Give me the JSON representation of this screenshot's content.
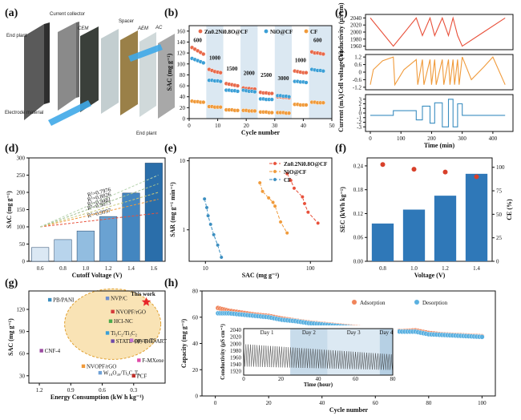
{
  "figure": {
    "panel_labels": [
      "(a)",
      "(b)",
      "(c)",
      "(d)",
      "(e)",
      "(f)",
      "(g)",
      "(h)"
    ]
  },
  "panel_a": {
    "labels": [
      "End plant",
      "Current collector",
      "CEM",
      "Spacer",
      "AEM",
      "AC",
      "Electrode material",
      "End plant"
    ]
  },
  "chart_data": [
    {
      "id": "b",
      "type": "scatter",
      "xlabel": "Cycle number",
      "ylabel": "SAC (mg g⁻¹)",
      "xlim": [
        0,
        50
      ],
      "ylim": [
        0,
        170
      ],
      "xticks": [
        0,
        10,
        20,
        30,
        40,
        50
      ],
      "yticks": [
        0,
        20,
        40,
        60,
        80,
        100,
        120,
        140,
        160
      ],
      "legend": [
        "Zn0.2Ni0.8O@CF",
        "NiO@CF",
        "CF"
      ],
      "legend_position": "top",
      "segment_labels": [
        "600",
        "1000",
        "1500",
        "2000",
        "2500",
        "3000",
        "1000",
        "600"
      ],
      "series": [
        {
          "name": "Zn0.2Ni0.8O@CF",
          "color": "#e8694a",
          "x": [
            1,
            2,
            3,
            4,
            5,
            7,
            8,
            9,
            10,
            11,
            13,
            14,
            15,
            16,
            17,
            19,
            20,
            21,
            22,
            23,
            25,
            26,
            27,
            28,
            29,
            31,
            32,
            33,
            34,
            35,
            37,
            38,
            39,
            40,
            41,
            43,
            44,
            45,
            46,
            47
          ],
          "y": [
            130,
            127,
            124,
            121,
            118,
            90,
            88,
            86,
            85,
            84,
            64,
            63,
            62,
            61,
            60,
            56,
            55,
            55,
            54,
            54,
            48,
            47,
            47,
            46,
            46,
            40,
            40,
            39,
            39,
            38,
            87,
            86,
            85,
            84,
            84,
            122,
            120,
            120,
            119,
            118
          ]
        },
        {
          "name": "NiO@CF",
          "color": "#3b9fd6",
          "x": [
            1,
            2,
            3,
            4,
            5,
            7,
            8,
            9,
            10,
            11,
            13,
            14,
            15,
            16,
            17,
            19,
            20,
            21,
            22,
            23,
            25,
            26,
            27,
            28,
            29,
            31,
            32,
            33,
            34,
            35,
            37,
            38,
            39,
            40,
            41,
            43,
            44,
            45,
            46,
            47
          ],
          "y": [
            110,
            108,
            106,
            104,
            102,
            70,
            70,
            69,
            69,
            68,
            52,
            52,
            51,
            51,
            50,
            52,
            51,
            50,
            50,
            49,
            36,
            36,
            35,
            35,
            35,
            42,
            42,
            41,
            41,
            40,
            68,
            68,
            67,
            67,
            66,
            90,
            89,
            88,
            88,
            87
          ]
        },
        {
          "name": "CF",
          "color": "#f09a3a",
          "x": [
            1,
            2,
            3,
            4,
            5,
            7,
            8,
            9,
            10,
            11,
            13,
            14,
            15,
            16,
            17,
            19,
            20,
            21,
            22,
            23,
            25,
            26,
            27,
            28,
            29,
            31,
            32,
            33,
            34,
            35,
            37,
            38,
            39,
            40,
            41,
            43,
            44,
            45,
            46,
            47
          ],
          "y": [
            32,
            31,
            31,
            30,
            30,
            22,
            22,
            21,
            21,
            21,
            16,
            16,
            16,
            15,
            15,
            15,
            15,
            14,
            14,
            14,
            12,
            12,
            12,
            11,
            11,
            11,
            11,
            11,
            10,
            10,
            26,
            26,
            25,
            25,
            25,
            30,
            30,
            29,
            29,
            29
          ]
        }
      ]
    },
    {
      "id": "c",
      "type": "line",
      "xlabel": "Time (min)",
      "xlim": [
        0,
        450
      ],
      "xticks": [
        0,
        100,
        200,
        300,
        400
      ],
      "subplots": [
        {
          "ylabel": "Conductivity (μS/cm)",
          "ylim": [
            1950,
            2050
          ],
          "yticks": [
            1960,
            1980,
            2000,
            2020,
            2040
          ],
          "color": "#e8503a",
          "x": [
            0,
            75,
            150,
            170,
            195,
            210,
            235,
            255,
            270,
            285,
            300,
            370,
            440
          ],
          "y": [
            2040,
            1960,
            2040,
            1990,
            2040,
            1990,
            2040,
            1990,
            2040,
            1990,
            1960,
            2000,
            2040
          ]
        },
        {
          "ylabel": "Cell voltage (V)",
          "ylim": [
            -1.4,
            1.4
          ],
          "yticks": [
            -1.2,
            -0.6,
            0.0,
            0.6,
            1.2
          ],
          "color": "#f09a3a",
          "x": [
            0,
            10,
            40,
            75,
            80,
            110,
            150,
            155,
            170,
            175,
            195,
            200,
            210,
            215,
            235,
            240,
            255,
            260,
            270,
            275,
            285,
            290,
            300,
            330,
            370,
            400,
            440
          ],
          "y": [
            -1.0,
            0.2,
            0.9,
            1.2,
            -1.0,
            0.2,
            1.0,
            -1.0,
            1.0,
            -1.0,
            1.0,
            -1.0,
            1.0,
            -1.0,
            1.0,
            -1.0,
            1.0,
            -1.0,
            1.0,
            -1.0,
            1.0,
            -1.0,
            1.2,
            -0.6,
            0.4,
            1.2,
            -1.0
          ]
        },
        {
          "ylabel": "Current (mA)",
          "ylim": [
            -4,
            4
          ],
          "yticks": [
            -3,
            -2,
            -1,
            0,
            1,
            2,
            3
          ],
          "color": "#3b8ec0",
          "x": [
            0,
            75,
            75,
            150,
            150,
            170,
            170,
            195,
            195,
            210,
            210,
            235,
            235,
            255,
            255,
            270,
            270,
            285,
            285,
            300,
            300,
            440
          ],
          "y": [
            -0.5,
            -0.5,
            0.5,
            0.5,
            -1.5,
            -1.5,
            1.5,
            1.5,
            -2.2,
            -2.2,
            2.2,
            2.2,
            -3,
            -3,
            3,
            3,
            -3,
            -3,
            2,
            2,
            -0.5,
            -0.5
          ]
        }
      ]
    },
    {
      "id": "d",
      "type": "bar",
      "xlabel": "Cutoff Voltage (V)",
      "ylabel": "SAC (mg g⁻¹)",
      "categories": [
        "0.6",
        "0.8",
        "1.0",
        "1.2",
        "1.4",
        "1.6"
      ],
      "values": [
        40,
        63,
        88,
        130,
        198,
        285
      ],
      "ylim": [
        0,
        300
      ],
      "yticks": [
        0,
        50,
        100,
        150,
        200,
        250,
        300
      ],
      "trend_labels": [
        "R²=0.9997",
        "R²=0.9873",
        "R²=0.9481",
        "R²=0.8826",
        "R²=0.7976"
      ],
      "trend_end_values": [
        140,
        180,
        200,
        225,
        250
      ],
      "trend_colors": [
        "#e8503a",
        "#f09a3a",
        "#c9c97a",
        "#9fbf8f",
        "#b8d4b0"
      ]
    },
    {
      "id": "e",
      "type": "scatter",
      "xlabel": "SAC (mg g⁻¹)",
      "ylabel": "SAR (mg g⁻¹ min⁻¹)",
      "xscale": "log",
      "yscale": "log",
      "xlim": [
        7,
        160
      ],
      "ylim": [
        0.35,
        11
      ],
      "xticks": [
        10,
        100
      ],
      "yticks": [
        1,
        10
      ],
      "legend": [
        "Zn0.2Ni0.8O@CF",
        "NiO@CF",
        "CF"
      ],
      "series": [
        {
          "name": "Zn0.2Ni0.8O@CF",
          "color": "#e8503a",
          "x": [
            60,
            65,
            70,
            84,
            88,
            95,
            118
          ],
          "y": [
            6.5,
            5.2,
            4.0,
            3.0,
            2.4,
            1.8,
            1.25
          ]
        },
        {
          "name": "NiO@CF",
          "color": "#f09a3a",
          "x": [
            33,
            35,
            40,
            44,
            46,
            52,
            60
          ],
          "y": [
            4.8,
            3.6,
            2.9,
            2.5,
            2.2,
            1.3,
            0.9
          ]
        },
        {
          "name": "CF",
          "color": "#3b8ec0",
          "x": [
            9.8,
            10.3,
            10.6,
            11.2,
            12.0,
            13.1,
            14.2
          ],
          "y": [
            2.8,
            2.1,
            1.6,
            1.2,
            0.85,
            0.6,
            0.4
          ]
        }
      ]
    },
    {
      "id": "f",
      "type": "bar",
      "xlabel": "Voltage (V)",
      "ylabel": "SEC (kWh kg⁻¹)",
      "y2label": "CE (%)",
      "categories": [
        "0.8",
        "1.0",
        "1.2",
        "1.4"
      ],
      "values": [
        0.095,
        0.13,
        0.165,
        0.22
      ],
      "ce_values": [
        103,
        98,
        95,
        90
      ],
      "ylim": [
        0,
        0.26
      ],
      "yticks": [
        0.0,
        0.06,
        0.12,
        0.18,
        0.24
      ],
      "y2lim": [
        0,
        110
      ],
      "y2ticks": [
        0,
        25,
        50,
        75,
        100
      ]
    },
    {
      "id": "g",
      "type": "scatter",
      "xlabel": "Energy Consumption (kW h kg⁻¹)",
      "ylabel": "SAC (mg g⁻¹)",
      "xlim": [
        1.3,
        0.0
      ],
      "ylim": [
        20,
        145
      ],
      "xticks": [
        1.2,
        0.9,
        0.6,
        0.3
      ],
      "yticks": [
        30,
        60,
        90,
        120
      ],
      "highlight_label": "This work",
      "points": [
        {
          "label": "This work",
          "x": 0.18,
          "y": 130,
          "color": "#e8262a"
        },
        {
          "label": "PB/PANI",
          "x": 1.1,
          "y": 133,
          "color": "#3b8ec0"
        },
        {
          "label": "NVP/C",
          "x": 0.55,
          "y": 135,
          "color": "#6e8fcf"
        },
        {
          "label": "NVOPF/rGO",
          "x": 0.5,
          "y": 117,
          "color": "#d43a3a"
        },
        {
          "label": "HCl-NC",
          "x": 0.52,
          "y": 104,
          "color": "#4aaa4a"
        },
        {
          "label": "Ti₃C₂/Ti₃C₂",
          "x": 0.55,
          "y": 88,
          "color": "#3b9fd6"
        },
        {
          "label": "STATE-OF-THE-ART",
          "x": 0.5,
          "y": 77,
          "color": "#6e4aa8"
        },
        {
          "label": "ppy-p-TS",
          "x": 0.32,
          "y": 78,
          "color": "#c070d0"
        },
        {
          "label": "CNF-4",
          "x": 1.18,
          "y": 64,
          "color": "#9a4aa0"
        },
        {
          "label": "F-MXene",
          "x": 0.25,
          "y": 51,
          "color": "#e04aa8"
        },
        {
          "label": "NVOPF/rGO",
          "x": 0.78,
          "y": 43,
          "color": "#f09a3a"
        },
        {
          "label": "W₁₈O₄₉/Ti₃C₂Tₓ",
          "x": 0.62,
          "y": 34,
          "color": "#6ea0d6"
        },
        {
          "label": "PCF",
          "x": 0.3,
          "y": 30,
          "color": "#c0302a"
        }
      ]
    },
    {
      "id": "h",
      "type": "scatter",
      "xlabel": "Cycle number",
      "ylabel": "Capacity (mg g⁻¹)",
      "xlim": [
        -5,
        105
      ],
      "ylim": [
        0,
        80
      ],
      "xticks": [
        0,
        20,
        40,
        60,
        80,
        100
      ],
      "yticks": [
        0,
        20,
        40,
        60,
        80
      ],
      "legend": [
        "Adsorption",
        "Desorption"
      ],
      "series": [
        {
          "name": "Adsorption",
          "color": "#f0845a",
          "x": [
            1,
            5,
            10,
            15,
            20,
            25,
            30,
            35,
            40,
            45,
            50,
            55,
            60,
            65,
            70,
            75,
            80,
            85,
            90,
            95,
            100
          ],
          "y": [
            67,
            65,
            63.5,
            62,
            61,
            59,
            57.5,
            56,
            55,
            54,
            53,
            52,
            51,
            50,
            49.5,
            50,
            48,
            47,
            46.5,
            46,
            45.5
          ]
        },
        {
          "name": "Desorption",
          "color": "#5ab0e0",
          "x": [
            1,
            5,
            10,
            15,
            20,
            25,
            30,
            35,
            40,
            45,
            50,
            55,
            60,
            65,
            70,
            75,
            80,
            85,
            90,
            95,
            100
          ],
          "y": [
            63,
            63,
            62,
            61,
            60,
            58,
            57,
            55.5,
            54.5,
            53.5,
            52.5,
            51.5,
            50.5,
            49.5,
            49,
            49,
            47,
            46.5,
            46,
            45.5,
            45
          ]
        }
      ],
      "inset": {
        "type": "line",
        "xlabel": "Time (hour)",
        "ylabel": "Conductivity (μS cm⁻¹)",
        "xlim": [
          0,
          80
        ],
        "ylim": [
          1910,
          2045
        ],
        "xticks": [
          0,
          20,
          40,
          60,
          80
        ],
        "yticks": [
          1920,
          1940,
          1960,
          1980,
          2000,
          2020,
          2040
        ],
        "day_labels": [
          "Day 1",
          "Day 2",
          "Day 3",
          "Day 4"
        ],
        "day_bounds": [
          0,
          25,
          45,
          73,
          80
        ],
        "oscillation_period_hours": 1.2,
        "envelope_top": [
          2000,
          1970
        ],
        "envelope_bottom": [
          1935,
          1925
        ]
      }
    }
  ]
}
